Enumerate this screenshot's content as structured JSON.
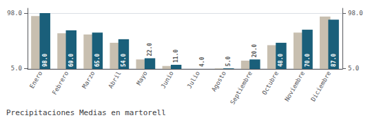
{
  "chart_data": {
    "type": "bar",
    "title": "Precipitaciones Medias en martorell",
    "categories": [
      "Enero",
      "Febrero",
      "Marzo",
      "Abril",
      "Mayo",
      "Junio",
      "Julio",
      "Agosto",
      "Septiembre",
      "Octubre",
      "Noviembre",
      "Diciembre"
    ],
    "series": [
      {
        "color": "#c8bfb0",
        "values": [
          93.0,
          64.0,
          62.0,
          48.0,
          20.0,
          9.0,
          4.0,
          5.0,
          18.0,
          44.0,
          65.0,
          92.0
        ]
      },
      {
        "color": "#1a5f7a",
        "values": [
          98.0,
          69.0,
          65.0,
          54.0,
          22.0,
          11.0,
          4.0,
          5.0,
          20.0,
          48.0,
          70.0,
          87.0
        ],
        "value_labels": [
          "98.0",
          "69.0",
          "65.0",
          "54.0",
          "22.0",
          "11.0",
          "4.0",
          "5.0",
          "20.0",
          "48.0",
          "70.0",
          "87.0"
        ]
      }
    ],
    "ylim": [
      4,
      106
    ],
    "yticks": [
      {
        "value": 5,
        "label": "5.0"
      },
      {
        "value": 98,
        "label": "98.0"
      }
    ],
    "y2lim": [
      4,
      106
    ],
    "y2ticks": [
      {
        "value": 5,
        "label": "5.0"
      },
      {
        "value": 98,
        "label": "98.0"
      }
    ],
    "grid": true,
    "data_labels": true
  }
}
